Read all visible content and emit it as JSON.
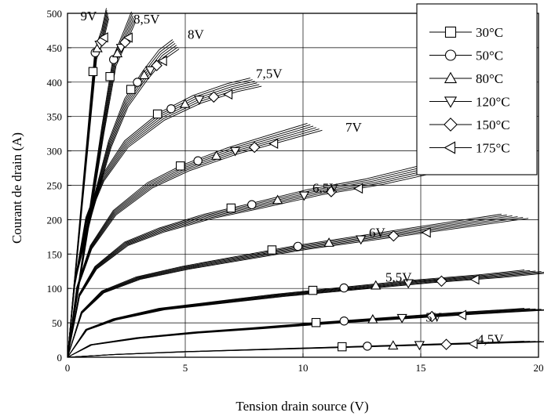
{
  "chart_data": {
    "type": "line",
    "title": "",
    "xlabel": "Tension drain source (V)",
    "ylabel": "Courant de drain (A)",
    "xlim": [
      0,
      20
    ],
    "ylim": [
      0,
      500
    ],
    "xticks": [
      0,
      5,
      10,
      15,
      20
    ],
    "yticks": [
      0,
      50,
      100,
      150,
      200,
      250,
      300,
      350,
      400,
      450,
      500
    ],
    "grid": true,
    "legend_position": "top-right",
    "temperature_series": [
      {
        "name": "30°C",
        "marker": "square"
      },
      {
        "name": "50°C",
        "marker": "circle"
      },
      {
        "name": "80°C",
        "marker": "triangle-up"
      },
      {
        "name": "120°C",
        "marker": "triangle-down"
      },
      {
        "name": "150°C",
        "marker": "diamond"
      },
      {
        "name": "175°C",
        "marker": "triangle-left"
      }
    ],
    "gate_curves": [
      {
        "label": "9V",
        "label_at": [
          0.55,
          490
        ],
        "x": [
          0,
          0.3,
          0.6,
          0.9,
          1.2,
          1.5,
          1.7
        ],
        "y": [
          0,
          110,
          220,
          330,
          440,
          470,
          500
        ]
      },
      {
        "label": "8,5V",
        "label_at": [
          2.8,
          485
        ],
        "x": [
          0,
          0.5,
          1.0,
          1.5,
          2.0,
          2.5,
          2.8
        ],
        "y": [
          0,
          110,
          220,
          330,
          430,
          470,
          495
        ]
      },
      {
        "label": "8V",
        "label_at": [
          5.1,
          463
        ],
        "x": [
          0,
          0.3,
          1.0,
          1.8,
          2.5,
          3.3,
          4.0,
          4.6
        ],
        "y": [
          0,
          110,
          210,
          310,
          370,
          410,
          440,
          455
        ]
      },
      {
        "label": "7,5V",
        "label_at": [
          8.0,
          406
        ],
        "x": [
          0,
          0.3,
          0.8,
          1.5,
          2.5,
          4.0,
          5.5,
          7.0,
          8.0
        ],
        "y": [
          0,
          105,
          200,
          260,
          310,
          350,
          375,
          392,
          400
        ]
      },
      {
        "label": "7V",
        "label_at": [
          11.8,
          328
        ],
        "x": [
          0,
          0.4,
          1.0,
          2.0,
          3.5,
          5.0,
          7.0,
          9.0,
          10.5
        ],
        "y": [
          0,
          100,
          160,
          210,
          250,
          275,
          300,
          320,
          335
        ]
      },
      {
        "label": "6,5V",
        "label_at": [
          10.4,
          240
        ],
        "x": [
          0,
          0.5,
          1.2,
          2.5,
          4.0,
          6.0,
          8.0,
          10.5,
          13.0,
          15.5
        ],
        "y": [
          0,
          90,
          130,
          165,
          185,
          205,
          220,
          240,
          255,
          275
        ]
      },
      {
        "label": "6V",
        "label_at": [
          12.8,
          175
        ],
        "x": [
          0,
          0.6,
          1.5,
          3.0,
          5.0,
          7.5,
          10.0,
          13.0,
          16.0,
          19.0
        ],
        "y": [
          0,
          65,
          95,
          115,
          130,
          145,
          160,
          175,
          190,
          205
        ]
      },
      {
        "label": "5,5V",
        "label_at": [
          13.5,
          110
        ],
        "x": [
          0,
          0.8,
          2.0,
          4.0,
          6.5,
          9.0,
          12.0,
          15.0,
          18.0,
          20.0
        ],
        "y": [
          0,
          40,
          55,
          70,
          80,
          90,
          100,
          110,
          118,
          125
        ]
      },
      {
        "label": "5V",
        "label_at": [
          15.2,
          52
        ],
        "x": [
          0,
          1.0,
          3.0,
          5.5,
          8.0,
          11.0,
          14.0,
          17.0,
          20.0
        ],
        "y": [
          0,
          18,
          28,
          36,
          42,
          50,
          57,
          64,
          70
        ]
      },
      {
        "label": "4,5V",
        "label_at": [
          17.4,
          20
        ],
        "x": [
          0,
          2.0,
          5.0,
          8.0,
          11.0,
          14.0,
          17.0,
          20.0
        ],
        "y": [
          0,
          4,
          8,
          11,
          14,
          17,
          20,
          23
        ]
      }
    ]
  }
}
